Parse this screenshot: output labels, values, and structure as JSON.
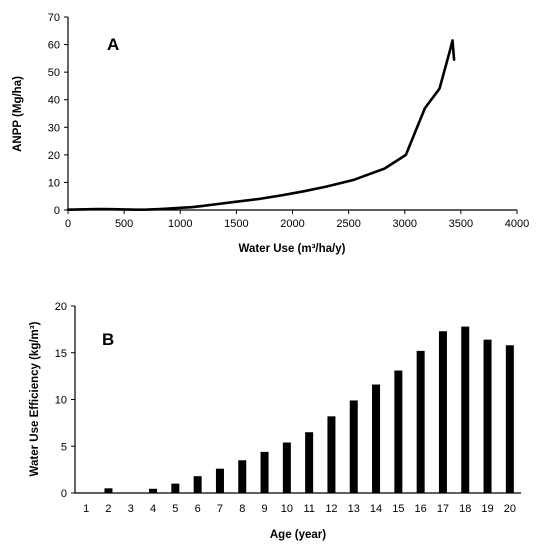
{
  "chart_data": [
    {
      "type": "line",
      "panel_label": "A",
      "xlabel": "Water Use (m³/ha/y)",
      "ylabel": "ANPP (Mg/ha)",
      "xlim": [
        0,
        4000
      ],
      "ylim": [
        0,
        70
      ],
      "xticks": [
        "0",
        "500",
        "1000",
        "1500",
        "2000",
        "2500",
        "3000",
        "3500",
        "4000"
      ],
      "yticks": [
        "0",
        "10",
        "20",
        "30",
        "40",
        "50",
        "60",
        "70"
      ],
      "grid": false,
      "series": [
        {
          "x": [
            0,
            100,
            200,
            300,
            400,
            500,
            600,
            700,
            800,
            900,
            1000,
            1100,
            1200,
            1300,
            1500,
            1700,
            1900,
            2100,
            2300,
            2550,
            2820,
            3010,
            3100,
            3180,
            3310,
            3370,
            3410,
            3425,
            3440
          ],
          "y": [
            0.1,
            0.2,
            0.3,
            0.35,
            0.3,
            0.2,
            0.1,
            0.15,
            0.3,
            0.5,
            0.8,
            1.0,
            1.5,
            2.0,
            3.0,
            4.0,
            5.3,
            6.8,
            8.5,
            11.0,
            15.0,
            20.0,
            29.0,
            37.0,
            44.0,
            53.0,
            59.0,
            61.5,
            54.5
          ]
        }
      ]
    },
    {
      "type": "bar",
      "panel_label": "B",
      "xlabel": "Age (year)",
      "ylabel": "Water Use Efficiency (kg/m³)",
      "ylim": [
        0,
        20
      ],
      "yticks": [
        "0",
        "5",
        "10",
        "15",
        "20"
      ],
      "grid": false,
      "categories": [
        "1",
        "2",
        "3",
        "4",
        "5",
        "6",
        "7",
        "8",
        "9",
        "10",
        "11",
        "12",
        "13",
        "14",
        "15",
        "16",
        "17",
        "18",
        "19",
        "20"
      ],
      "values": [
        0.0,
        0.5,
        0.05,
        0.45,
        1.0,
        1.8,
        2.6,
        3.5,
        4.4,
        5.4,
        6.5,
        8.2,
        9.9,
        11.6,
        13.1,
        15.2,
        17.3,
        17.8,
        16.4,
        15.8
      ]
    }
  ]
}
